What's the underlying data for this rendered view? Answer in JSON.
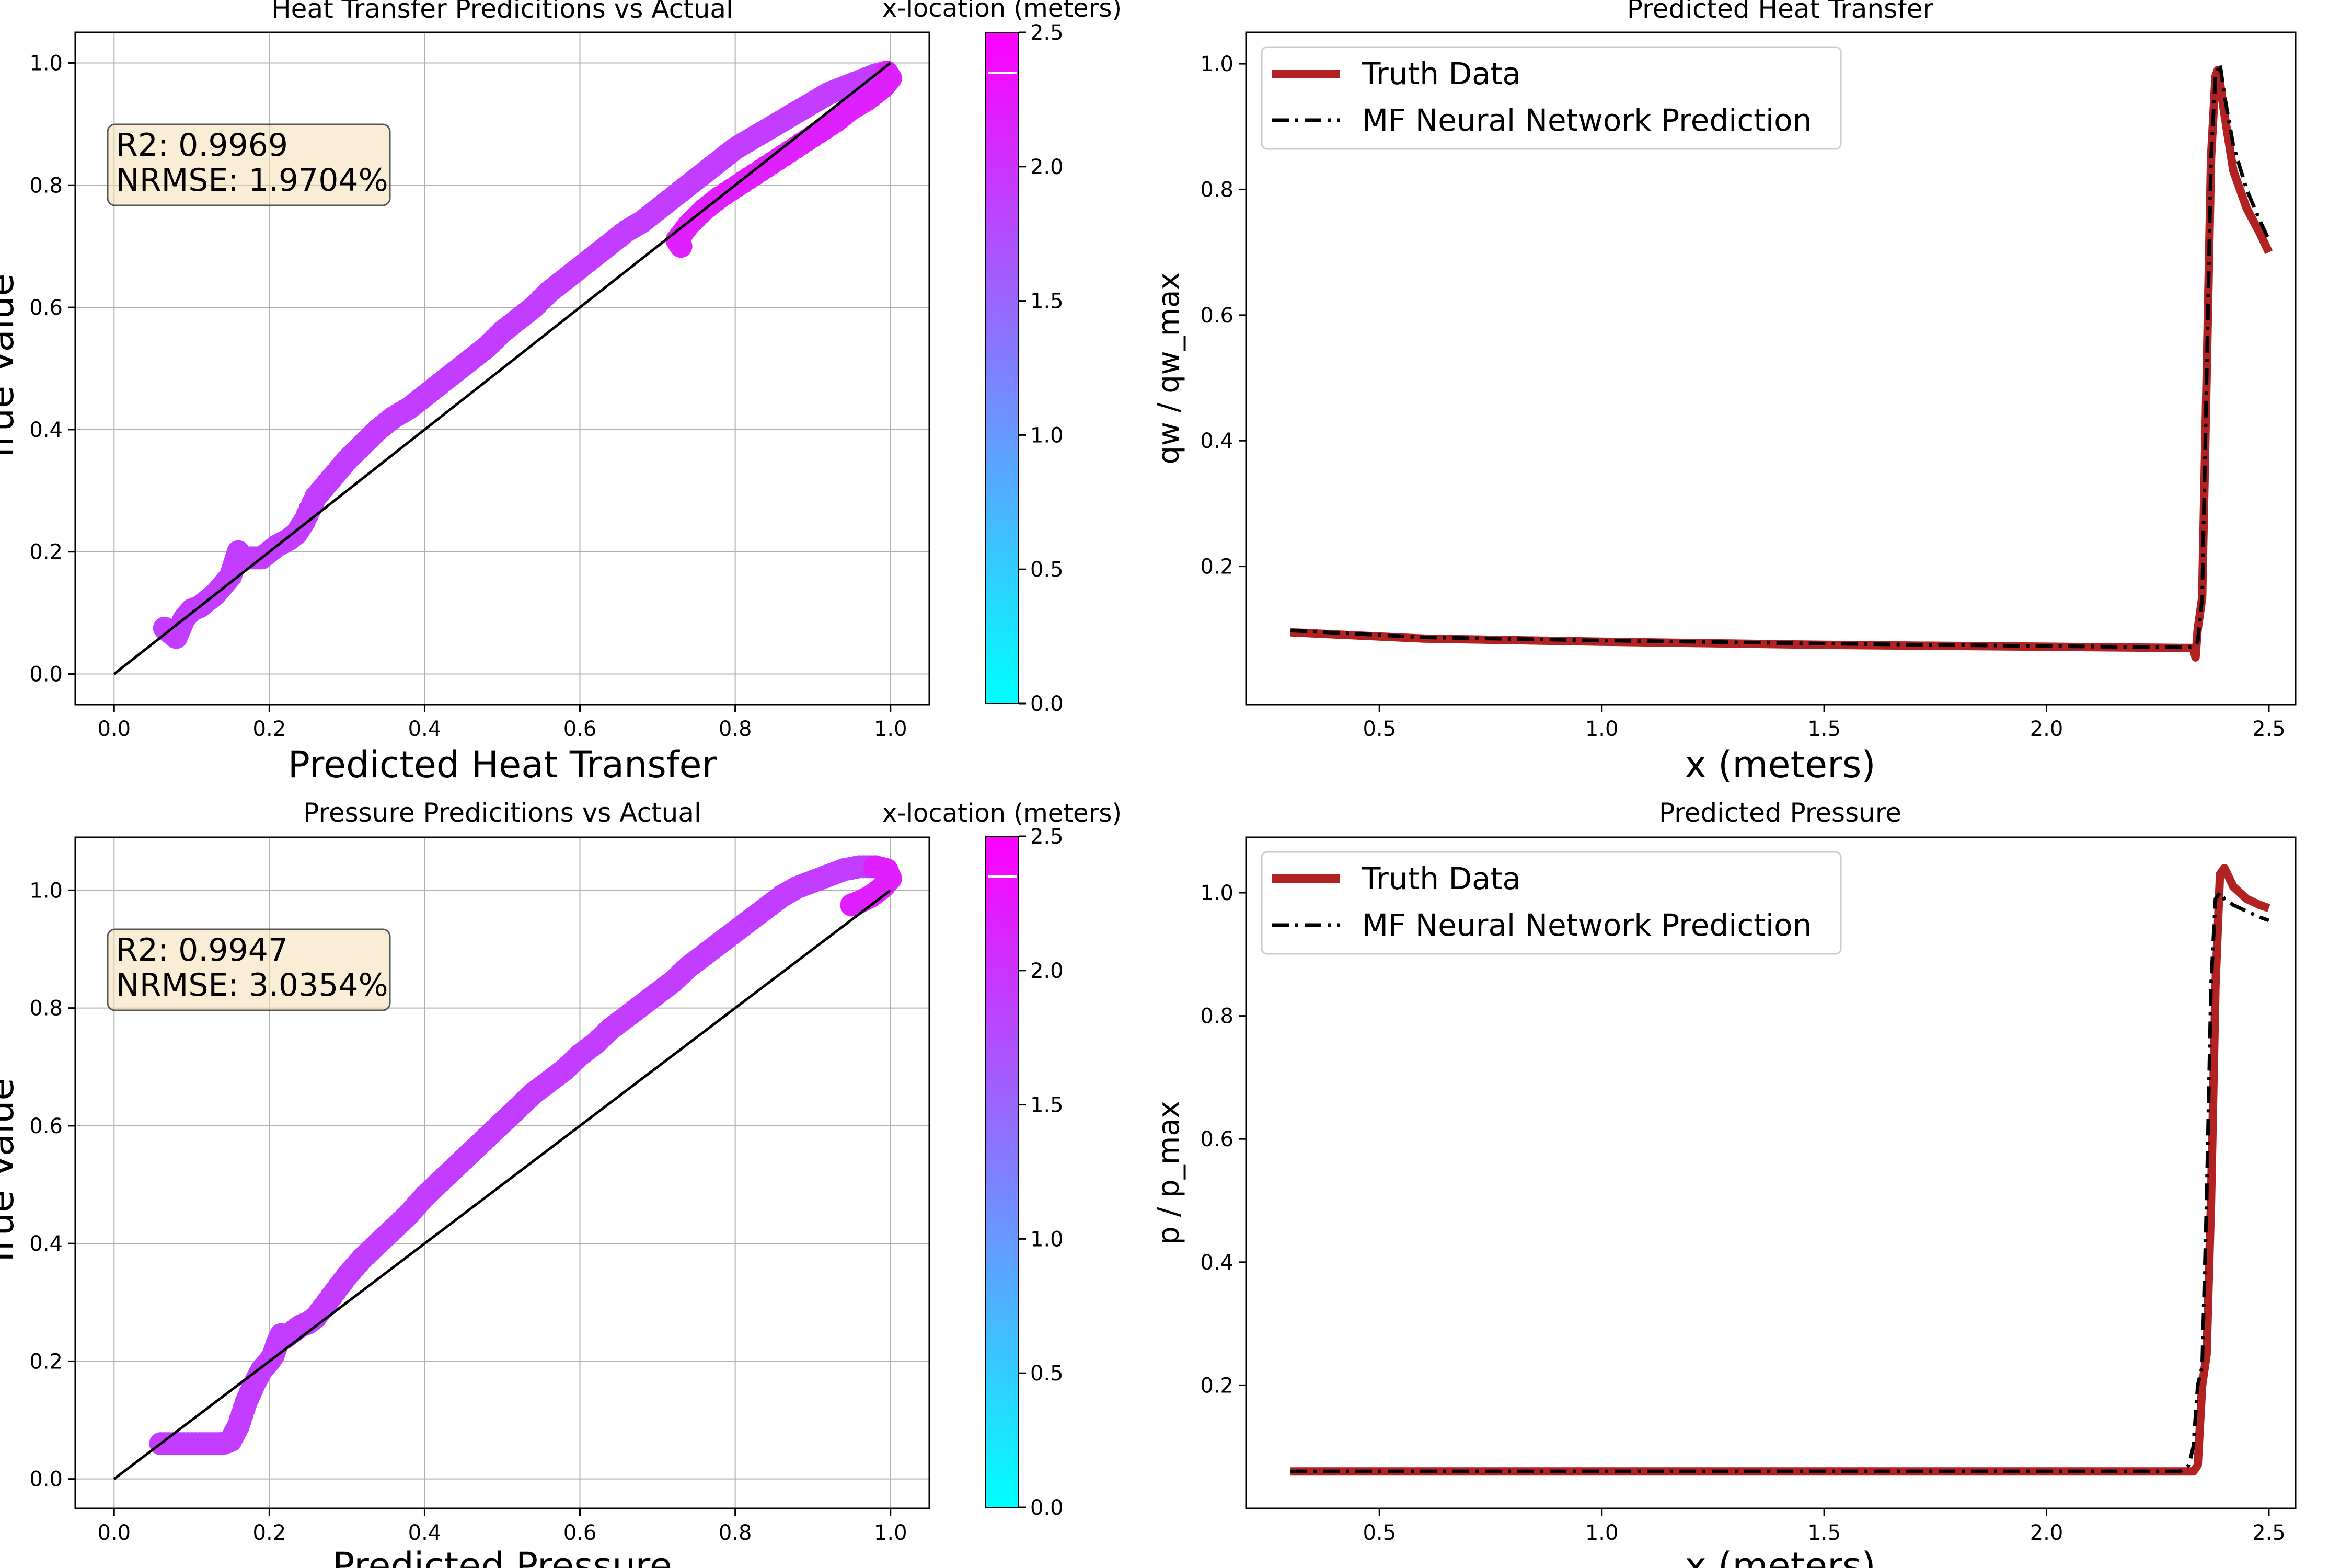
{
  "chart_data": [
    {
      "id": "heat-scatter",
      "type": "scatter",
      "title": "Heat Transfer Predicitions vs Actual",
      "xlabel": "Predicted Heat Transfer",
      "ylabel": "True Value",
      "xlim": [
        -0.05,
        1.05
      ],
      "ylim": [
        -0.05,
        1.05
      ],
      "xticks": [
        "0.0",
        "0.2",
        "0.4",
        "0.6",
        "0.8",
        "1.0"
      ],
      "yticks": [
        "0.0",
        "0.2",
        "0.4",
        "0.6",
        "0.8",
        "1.0"
      ],
      "grid": true,
      "stats": {
        "r2": "R2: 0.9969",
        "nrmse": "NRMSE: 1.9704%"
      },
      "reference_line": {
        "x": [
          0,
          1
        ],
        "y": [
          0,
          1
        ],
        "color": "#000000"
      },
      "colorbar": {
        "label": "x-location (meters)",
        "range": [
          0,
          2.5
        ],
        "ticks": [
          "0.0",
          "0.5",
          "1.0",
          "1.5",
          "2.0",
          "2.5"
        ],
        "colormap": "cool",
        "marker_value": 2.35
      },
      "point_segments": [
        {
          "color_value": 1.9,
          "points": [
            [
              0.065,
              0.075
            ],
            [
              0.075,
              0.065
            ],
            [
              0.08,
              0.06
            ],
            [
              0.085,
              0.075
            ],
            [
              0.09,
              0.09
            ],
            [
              0.1,
              0.105
            ],
            [
              0.11,
              0.11
            ],
            [
              0.12,
              0.12
            ],
            [
              0.13,
              0.13
            ],
            [
              0.14,
              0.145
            ],
            [
              0.15,
              0.16
            ],
            [
              0.155,
              0.18
            ],
            [
              0.16,
              0.2
            ],
            [
              0.165,
              0.19
            ],
            [
              0.175,
              0.19
            ],
            [
              0.19,
              0.19
            ],
            [
              0.21,
              0.21
            ],
            [
              0.225,
              0.22
            ],
            [
              0.235,
              0.23
            ],
            [
              0.245,
              0.25
            ],
            [
              0.26,
              0.29
            ],
            [
              0.28,
              0.32
            ],
            [
              0.3,
              0.35
            ],
            [
              0.32,
              0.375
            ],
            [
              0.34,
              0.4
            ],
            [
              0.36,
              0.42
            ],
            [
              0.38,
              0.435
            ],
            [
              0.4,
              0.455
            ],
            [
              0.42,
              0.475
            ],
            [
              0.44,
              0.495
            ],
            [
              0.46,
              0.515
            ],
            [
              0.48,
              0.535
            ],
            [
              0.5,
              0.56
            ],
            [
              0.52,
              0.58
            ],
            [
              0.54,
              0.6
            ],
            [
              0.56,
              0.625
            ],
            [
              0.58,
              0.645
            ],
            [
              0.6,
              0.665
            ],
            [
              0.62,
              0.685
            ],
            [
              0.64,
              0.705
            ],
            [
              0.66,
              0.725
            ],
            [
              0.68,
              0.74
            ],
            [
              0.7,
              0.76
            ],
            [
              0.72,
              0.78
            ],
            [
              0.74,
              0.8
            ],
            [
              0.76,
              0.82
            ],
            [
              0.78,
              0.84
            ],
            [
              0.8,
              0.86
            ],
            [
              0.82,
              0.875
            ],
            [
              0.84,
              0.89
            ],
            [
              0.86,
              0.905
            ],
            [
              0.88,
              0.92
            ],
            [
              0.9,
              0.935
            ],
            [
              0.92,
              0.95
            ],
            [
              0.94,
              0.96
            ],
            [
              0.96,
              0.97
            ],
            [
              0.98,
              0.98
            ],
            [
              0.995,
              0.985
            ]
          ]
        },
        {
          "color_value": 2.2,
          "points": [
            [
              0.995,
              0.985
            ],
            [
              1.0,
              0.975
            ],
            [
              0.99,
              0.96
            ],
            [
              0.97,
              0.94
            ],
            [
              0.95,
              0.925
            ],
            [
              0.93,
              0.905
            ],
            [
              0.9,
              0.88
            ],
            [
              0.87,
              0.855
            ],
            [
              0.84,
              0.83
            ],
            [
              0.81,
              0.805
            ],
            [
              0.78,
              0.78
            ],
            [
              0.76,
              0.76
            ],
            [
              0.74,
              0.735
            ],
            [
              0.725,
              0.71
            ],
            [
              0.73,
              0.7
            ]
          ]
        }
      ]
    },
    {
      "id": "heat-line",
      "type": "line",
      "title": "Predicted Heat Transfer",
      "xlabel": "x (meters)",
      "ylabel": "qw / qw_max",
      "xlim": [
        0.2,
        2.56
      ],
      "ylim": [
        -0.02,
        1.05
      ],
      "xticks": [
        "0.5",
        "1.0",
        "1.5",
        "2.0",
        "2.5"
      ],
      "yticks": [
        "0.2",
        "0.4",
        "0.6",
        "0.8",
        "1.0"
      ],
      "grid": false,
      "legend": "top-left",
      "series": [
        {
          "name": "Truth Data",
          "color": "#b22222",
          "style": "solid",
          "x": [
            0.3,
            0.6,
            1.0,
            1.5,
            2.0,
            2.3,
            2.33,
            2.335,
            2.34,
            2.35,
            2.36,
            2.37,
            2.38,
            2.385,
            2.39,
            2.4,
            2.42,
            2.45,
            2.48,
            2.5
          ],
          "y": [
            0.095,
            0.085,
            0.08,
            0.075,
            0.072,
            0.07,
            0.07,
            0.055,
            0.1,
            0.15,
            0.5,
            0.85,
            0.98,
            0.99,
            0.97,
            0.92,
            0.83,
            0.77,
            0.73,
            0.7
          ]
        },
        {
          "name": "MF Neural Network Prediction",
          "color": "#000000",
          "style": "dashdot",
          "x": [
            0.3,
            0.6,
            1.0,
            1.5,
            2.0,
            2.3,
            2.33,
            2.34,
            2.35,
            2.36,
            2.37,
            2.38,
            2.39,
            2.4,
            2.42,
            2.45,
            2.48,
            2.5
          ],
          "y": [
            0.098,
            0.087,
            0.082,
            0.077,
            0.073,
            0.071,
            0.072,
            0.08,
            0.15,
            0.5,
            0.85,
            0.98,
            1.0,
            0.95,
            0.87,
            0.8,
            0.75,
            0.72
          ]
        }
      ]
    },
    {
      "id": "pressure-scatter",
      "type": "scatter",
      "title": "Pressure Predicitions vs Actual",
      "xlabel": "Predicted Pressure",
      "ylabel": "True Value",
      "xlim": [
        -0.05,
        1.05
      ],
      "ylim": [
        -0.05,
        1.09
      ],
      "xticks": [
        "0.0",
        "0.2",
        "0.4",
        "0.6",
        "0.8",
        "1.0"
      ],
      "yticks": [
        "0.0",
        "0.2",
        "0.4",
        "0.6",
        "0.8",
        "1.0"
      ],
      "grid": true,
      "stats": {
        "r2": "R2: 0.9947",
        "nrmse": "NRMSE: 3.0354%"
      },
      "reference_line": {
        "x": [
          0,
          1
        ],
        "y": [
          0,
          1
        ],
        "color": "#000000"
      },
      "colorbar": {
        "label": "x-location (meters)",
        "range": [
          0,
          2.5
        ],
        "ticks": [
          "0.0",
          "0.5",
          "1.0",
          "1.5",
          "2.0",
          "2.5"
        ],
        "colormap": "cool",
        "marker_value": 2.35
      },
      "point_segments": [
        {
          "color_value": 1.9,
          "points": [
            [
              0.06,
              0.06
            ],
            [
              0.08,
              0.06
            ],
            [
              0.1,
              0.06
            ],
            [
              0.12,
              0.06
            ],
            [
              0.14,
              0.06
            ],
            [
              0.15,
              0.065
            ],
            [
              0.16,
              0.09
            ],
            [
              0.17,
              0.13
            ],
            [
              0.18,
              0.16
            ],
            [
              0.19,
              0.185
            ],
            [
              0.2,
              0.2
            ],
            [
              0.205,
              0.21
            ],
            [
              0.21,
              0.23
            ],
            [
              0.215,
              0.245
            ],
            [
              0.22,
              0.24
            ],
            [
              0.23,
              0.25
            ],
            [
              0.24,
              0.26
            ],
            [
              0.25,
              0.265
            ],
            [
              0.26,
              0.275
            ],
            [
              0.28,
              0.31
            ],
            [
              0.3,
              0.345
            ],
            [
              0.32,
              0.375
            ],
            [
              0.34,
              0.4
            ],
            [
              0.36,
              0.425
            ],
            [
              0.38,
              0.45
            ],
            [
              0.4,
              0.48
            ],
            [
              0.42,
              0.505
            ],
            [
              0.44,
              0.53
            ],
            [
              0.46,
              0.555
            ],
            [
              0.48,
              0.58
            ],
            [
              0.5,
              0.605
            ],
            [
              0.52,
              0.63
            ],
            [
              0.54,
              0.655
            ],
            [
              0.56,
              0.675
            ],
            [
              0.58,
              0.695
            ],
            [
              0.6,
              0.72
            ],
            [
              0.62,
              0.74
            ],
            [
              0.64,
              0.765
            ],
            [
              0.66,
              0.785
            ],
            [
              0.68,
              0.805
            ],
            [
              0.7,
              0.825
            ],
            [
              0.72,
              0.845
            ],
            [
              0.74,
              0.87
            ],
            [
              0.76,
              0.89
            ],
            [
              0.78,
              0.91
            ],
            [
              0.8,
              0.93
            ],
            [
              0.82,
              0.95
            ],
            [
              0.84,
              0.97
            ],
            [
              0.86,
              0.99
            ],
            [
              0.88,
              1.005
            ],
            [
              0.9,
              1.015
            ],
            [
              0.92,
              1.025
            ],
            [
              0.94,
              1.035
            ],
            [
              0.96,
              1.04
            ],
            [
              0.98,
              1.04
            ]
          ]
        },
        {
          "color_value": 2.2,
          "points": [
            [
              0.98,
              1.04
            ],
            [
              0.995,
              1.035
            ],
            [
              1.0,
              1.02
            ],
            [
              0.99,
              1.005
            ],
            [
              0.975,
              0.99
            ],
            [
              0.96,
              0.98
            ],
            [
              0.95,
              0.975
            ]
          ]
        }
      ]
    },
    {
      "id": "pressure-line",
      "type": "line",
      "title": "Predicted Pressure",
      "xlabel": "x (meters)",
      "ylabel": "p / p_max",
      "xlim": [
        0.2,
        2.56
      ],
      "ylim": [
        0.0,
        1.09
      ],
      "xticks": [
        "0.5",
        "1.0",
        "1.5",
        "2.0",
        "2.5"
      ],
      "yticks": [
        "0.2",
        "0.4",
        "0.6",
        "0.8",
        "1.0"
      ],
      "grid": false,
      "legend": "top-left",
      "series": [
        {
          "name": "Truth Data",
          "color": "#b22222",
          "style": "solid",
          "x": [
            0.3,
            0.6,
            1.0,
            1.5,
            2.0,
            2.3,
            2.33,
            2.34,
            2.35,
            2.36,
            2.37,
            2.38,
            2.39,
            2.4,
            2.42,
            2.45,
            2.48,
            2.5
          ],
          "y": [
            0.06,
            0.06,
            0.06,
            0.06,
            0.06,
            0.06,
            0.06,
            0.07,
            0.2,
            0.25,
            0.5,
            0.85,
            1.03,
            1.04,
            1.01,
            0.99,
            0.98,
            0.975
          ]
        },
        {
          "name": "MF Neural Network Prediction",
          "color": "#000000",
          "style": "dashdot",
          "x": [
            0.3,
            0.6,
            1.0,
            1.5,
            2.0,
            2.3,
            2.32,
            2.33,
            2.34,
            2.35,
            2.36,
            2.37,
            2.38,
            2.39,
            2.4,
            2.42,
            2.45,
            2.48,
            2.5
          ],
          "y": [
            0.06,
            0.06,
            0.06,
            0.06,
            0.06,
            0.06,
            0.07,
            0.1,
            0.2,
            0.23,
            0.5,
            0.85,
            0.99,
            1.0,
            0.99,
            0.98,
            0.97,
            0.96,
            0.955
          ]
        }
      ]
    }
  ]
}
